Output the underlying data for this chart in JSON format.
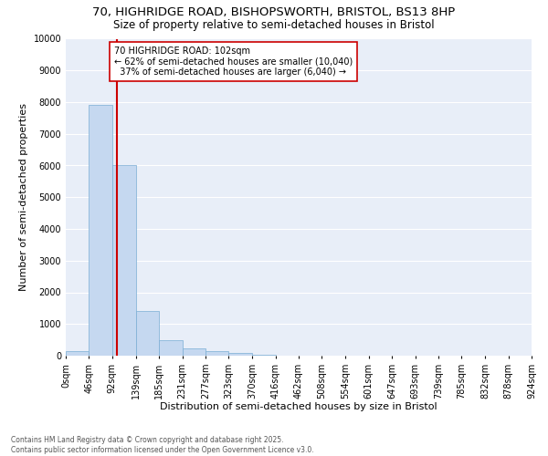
{
  "title_line1": "70, HIGHRIDGE ROAD, BISHOPSWORTH, BRISTOL, BS13 8HP",
  "title_line2": "Size of property relative to semi-detached houses in Bristol",
  "xlabel": "Distribution of semi-detached houses by size in Bristol",
  "ylabel": "Number of semi-detached properties",
  "bar_color": "#c5d8f0",
  "bar_edge_color": "#7aadd4",
  "background_color": "#e8eef8",
  "grid_color": "#ffffff",
  "annotation_line_color": "#cc0000",
  "annotation_box_color": "#cc0000",
  "property_size": 102,
  "annotation_line1": "70 HIGHRIDGE ROAD: 102sqm",
  "annotation_line2": "← 62% of semi-detached houses are smaller (10,040)",
  "annotation_line3": "  37% of semi-detached houses are larger (6,040) →",
  "bin_edges": [
    0,
    46,
    92,
    139,
    185,
    231,
    277,
    323,
    370,
    416,
    462,
    508,
    554,
    601,
    647,
    693,
    739,
    785,
    832,
    878,
    924
  ],
  "bin_labels": [
    "0sqm",
    "46sqm",
    "92sqm",
    "139sqm",
    "185sqm",
    "231sqm",
    "277sqm",
    "323sqm",
    "370sqm",
    "416sqm",
    "462sqm",
    "508sqm",
    "554sqm",
    "601sqm",
    "647sqm",
    "693sqm",
    "739sqm",
    "785sqm",
    "832sqm",
    "878sqm",
    "924sqm"
  ],
  "bar_heights": [
    150,
    7900,
    6000,
    1400,
    500,
    230,
    150,
    80,
    30,
    5,
    3,
    2,
    1,
    0,
    0,
    0,
    0,
    0,
    0,
    0
  ],
  "ylim": [
    0,
    10000
  ],
  "yticks": [
    0,
    1000,
    2000,
    3000,
    4000,
    5000,
    6000,
    7000,
    8000,
    9000,
    10000
  ],
  "footnote": "Contains HM Land Registry data © Crown copyright and database right 2025.\nContains public sector information licensed under the Open Government Licence v3.0.",
  "title_fontsize": 9.5,
  "subtitle_fontsize": 8.5,
  "axis_label_fontsize": 8,
  "tick_fontsize": 7,
  "annotation_fontsize": 7
}
